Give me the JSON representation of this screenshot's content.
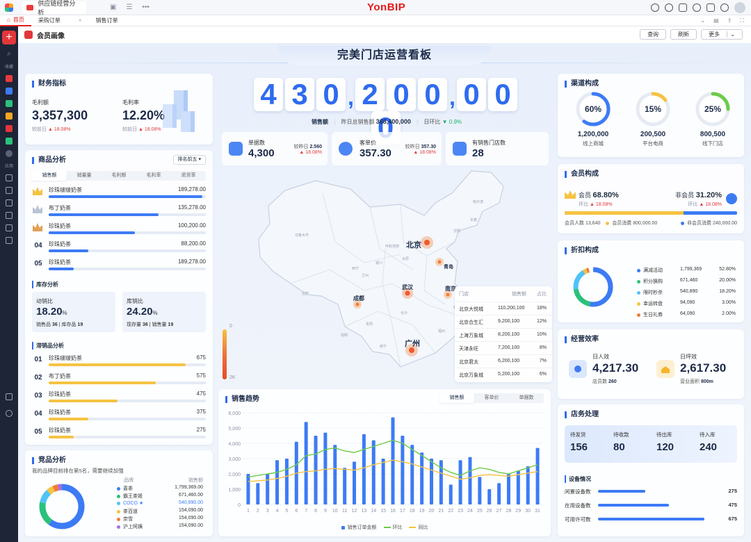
{
  "titlebar": {
    "doc_tab": "供应链经营分析",
    "logo": "YonBIP"
  },
  "tabs": [
    {
      "label": "首页"
    },
    {
      "label": "采购订单"
    },
    {
      "label": "销售订单"
    }
  ],
  "sidebar": {
    "fav_label": "收藏",
    "app_label": "应用"
  },
  "page": {
    "title": "会员画像",
    "buttons": {
      "query": "查询",
      "refresh": "刷新",
      "more": "更多"
    }
  },
  "banner": {
    "title": "完美门店运营看板"
  },
  "finance": {
    "title": "财务指标",
    "gross_profit": {
      "label": "毛利额",
      "value": "3,357,300",
      "cmp_label": "较前日",
      "change": "▲ 18.08%"
    },
    "gross_margin": {
      "label": "毛利率",
      "value": "12.20%",
      "cmp_label": "较前日",
      "change": "▲ 18.08%"
    }
  },
  "goods": {
    "title": "商品分析",
    "dropdown": "排名前五",
    "tabs": [
      "销售额",
      "销量量",
      "毛利额",
      "毛利率",
      "退货率"
    ],
    "rows": [
      {
        "rank": "",
        "name": "珍珠啵啵奶茶",
        "value": "189,278.00",
        "pct": 0.98
      },
      {
        "rank": "",
        "name": "布丁奶茶",
        "value": "135,278.00",
        "pct": 0.7
      },
      {
        "rank": "",
        "name": "珍珠奶茶",
        "value": "100,200.00",
        "pct": 0.55
      },
      {
        "rank": "04",
        "name": "珍珠奶茶",
        "value": "88,200.00",
        "pct": 0.25
      },
      {
        "rank": "05",
        "name": "珍珠奶茶",
        "value": "189,278.00",
        "pct": 0.16
      }
    ]
  },
  "stock": {
    "title": "库存分析",
    "sell_through": {
      "label": "动销比",
      "value": "18.20",
      "unit": "%",
      "line1": "销售品",
      "line1_val": "36",
      "line2": "库存品",
      "line2_val": "19"
    },
    "stock_sale": {
      "label": "库销比",
      "value": "24.20",
      "unit": "%",
      "line1": "现存量",
      "line1_val": "36",
      "line2": "销售量",
      "line2_val": "19"
    }
  },
  "slow": {
    "title": "滞销品分析",
    "rows": [
      {
        "rank": "01",
        "name": "珍珠啵啵奶茶",
        "value": "675",
        "pct": 0.87
      },
      {
        "rank": "02",
        "name": "布丁奶茶",
        "value": "575",
        "pct": 0.68
      },
      {
        "rank": "03",
        "name": "珍珠奶茶",
        "value": "475",
        "pct": 0.44
      },
      {
        "rank": "04",
        "name": "珍珠奶茶",
        "value": "375",
        "pct": 0.25
      },
      {
        "rank": "05",
        "name": "珍珠奶茶",
        "value": "275",
        "pct": 0.16
      }
    ]
  },
  "competitor": {
    "title": "竞品分析",
    "note": "我的品牌目前排在第5名，需要继续加强",
    "col_brand": "品牌",
    "col_sales": "销售额",
    "rows": [
      {
        "name": "喜茶",
        "value": "1,799,369.00",
        "color": "#3d7bf5"
      },
      {
        "name": "霸王茶姬",
        "value": "671,460.00",
        "color": "#2bc17b"
      },
      {
        "name": "COCO ★",
        "value": "540,890.00",
        "color": "#4fc3f7",
        "highlight": true
      },
      {
        "name": "茶百道",
        "value": "154,090.00",
        "color": "#f5c342"
      },
      {
        "name": "奈雪",
        "value": "154,090.00",
        "color": "#f07a3c"
      },
      {
        "name": "沪上阿姨",
        "value": "154,090.00",
        "color": "#a070e8"
      }
    ],
    "shares": [
      0.6,
      0.18,
      0.1,
      0.05,
      0.04,
      0.03
    ]
  },
  "sales_total": {
    "digits": [
      "4",
      "3",
      "0",
      ",",
      "2",
      "0",
      "0",
      ",",
      "0",
      "0",
      "0"
    ],
    "label": "销售额",
    "yesterday_label": "昨日总销售额",
    "yesterday_value": "368,400,000",
    "dod_label": "日环比",
    "dod_value": "▼ 0.9%"
  },
  "kpis": [
    {
      "label": "单据数",
      "value": "4,300",
      "cmp_label": "较昨日",
      "cmp_value": "2.560",
      "change": "▲ 18.08%"
    },
    {
      "label": "客单价",
      "value": "357.30",
      "cmp_label": "较昨日",
      "cmp_value": "357.30",
      "change": "▲ 18.08%"
    },
    {
      "label": "有销售门店数",
      "value": "28"
    }
  ],
  "map": {
    "cities": [
      "北京",
      "青岛",
      "成都",
      "武汉",
      "南京",
      "广州"
    ],
    "small_labels": [
      "乌鲁木齐",
      "呼和浩特",
      "银川",
      "西宁",
      "兰州",
      "拉萨",
      "太原",
      "哈尔滨",
      "长春",
      "沈阳",
      "昆明",
      "贵阳",
      "南宁",
      "长沙",
      "福州",
      "杭州"
    ],
    "scale_top": "0",
    "scale_bottom": "2K",
    "table": {
      "headers": [
        "门店",
        "销售额",
        "占比"
      ],
      "rows": [
        [
          "北京大悦城",
          "110,200,100",
          "18%"
        ],
        [
          "北京合生汇",
          "9,200,100",
          "12%"
        ],
        [
          "上海万象城",
          "8,200,100",
          "10%"
        ],
        [
          "天津永旺",
          "7,200,100",
          "8%"
        ],
        [
          "北京君太",
          "6,200,100",
          "7%"
        ],
        [
          "北京万象城",
          "5,200,100",
          "6%"
        ]
      ]
    }
  },
  "trend": {
    "title": "销售趋势",
    "tabs": [
      "销售额",
      "客单价",
      "单据数"
    ],
    "legend": [
      "销售订单金额",
      "环比",
      "同比"
    ]
  },
  "chart_data": {
    "type": "bar",
    "categories": [
      "1",
      "2",
      "3",
      "4",
      "5",
      "6",
      "7",
      "8",
      "9",
      "10",
      "11",
      "12",
      "13",
      "14",
      "15",
      "16",
      "17",
      "18",
      "19",
      "20",
      "21",
      "22",
      "23",
      "24",
      "25",
      "26",
      "27",
      "28",
      "29",
      "30",
      "31"
    ],
    "ylim": [
      0,
      6000
    ],
    "yticks": [
      "0",
      "1,000",
      "2,000",
      "3,000",
      "4,000",
      "5,000",
      "6,000"
    ],
    "series": [
      {
        "name": "销售订单金额",
        "type": "bar",
        "color": "#3d7bf5",
        "values": [
          2000,
          1400,
          2000,
          2900,
          3000,
          4100,
          5400,
          4500,
          4700,
          3900,
          2400,
          2800,
          4600,
          4200,
          3000,
          5700,
          4500,
          3900,
          3400,
          3000,
          2900,
          1300,
          2900,
          3100,
          1800,
          1000,
          1400,
          2000,
          2200,
          2500,
          3700
        ]
      },
      {
        "name": "环比",
        "type": "line",
        "color": "#6dcc4a",
        "values": [
          1800,
          1900,
          2000,
          2100,
          2300,
          2600,
          3200,
          3300,
          3600,
          3700,
          3500,
          3400,
          3600,
          3800,
          4000,
          4200,
          4000,
          3600,
          3200,
          2800,
          2400,
          2100,
          1900,
          2200,
          2400,
          2300,
          2100,
          2000,
          2200,
          2400,
          2600
        ]
      },
      {
        "name": "同比",
        "type": "line",
        "color": "#f5c342",
        "values": [
          1500,
          1550,
          1600,
          1700,
          1850,
          2050,
          2150,
          2200,
          2300,
          2350,
          2300,
          2250,
          2400,
          2600,
          2750,
          2900,
          2800,
          2650,
          2450,
          2250,
          2050,
          1850,
          1650,
          1750,
          1900,
          1950,
          1900,
          1850,
          1950,
          2050,
          2150
        ]
      }
    ]
  },
  "channel": {
    "title": "渠道构成",
    "items": [
      {
        "pct": "60%",
        "ratio": 0.6,
        "value": "1,200,000",
        "label": "线上商城",
        "color": "#3d7bf5"
      },
      {
        "pct": "15%",
        "ratio": 0.15,
        "value": "200,500",
        "label": "平台电商",
        "color": "#f5c342"
      },
      {
        "pct": "25%",
        "ratio": 0.25,
        "value": "800,500",
        "label": "线下门店",
        "color": "#6dcc4a"
      }
    ]
  },
  "member": {
    "title": "会员构成",
    "member_label": "会员",
    "member_pct": "68.80%",
    "member_change": "▲ 18.08%",
    "member_cmp": "环比",
    "non_label": "非会员",
    "non_pct": "31.20%",
    "non_change": "▲ 18.08%",
    "non_cmp": "环比",
    "member_ratio": 0.688,
    "stat1": "会员人数 13,640",
    "stat2": "会员消费 800,000.00",
    "stat3": "非会员消费 240,000.00"
  },
  "discount": {
    "title": "折扣构成",
    "rows": [
      {
        "name": "满减活动",
        "value": "1,799,369",
        "pct": "52.80%",
        "color": "#3d7bf5",
        "share": 0.528
      },
      {
        "name": "积分换购",
        "value": "671,460",
        "pct": "20.00%",
        "color": "#2bc17b",
        "share": 0.2
      },
      {
        "name": "限时秒杀",
        "value": "540,890",
        "pct": "18.20%",
        "color": "#4fc3f7",
        "share": 0.182
      },
      {
        "name": "幸运转盘",
        "value": "94,090",
        "pct": "3.00%",
        "color": "#f5c342",
        "share": 0.03
      },
      {
        "name": "生日礼券",
        "value": "64,090",
        "pct": "2.00%",
        "color": "#f07a3c",
        "share": 0.02
      }
    ]
  },
  "efficiency": {
    "title": "经营效率",
    "per_person": {
      "label": "日人效",
      "value": "4,217.30",
      "sub_label": "店员数",
      "sub_value": "260"
    },
    "per_area": {
      "label": "日坪效",
      "value": "2,617.30",
      "sub_label": "营业面积",
      "sub_value": "800m"
    }
  },
  "store": {
    "title": "店务处理",
    "tasks": [
      {
        "label": "待发货",
        "value": "156"
      },
      {
        "label": "待收款",
        "value": "80"
      },
      {
        "label": "待出库",
        "value": "120"
      },
      {
        "label": "待入库",
        "value": "240"
      }
    ],
    "device_title": "设备情况",
    "devices": [
      {
        "label": "闲置设备数",
        "value": "275",
        "pct": 0.4
      },
      {
        "label": "在用设备数",
        "value": "475",
        "pct": 0.6
      },
      {
        "label": "可用许可数",
        "value": "675",
        "pct": 0.9
      }
    ]
  }
}
